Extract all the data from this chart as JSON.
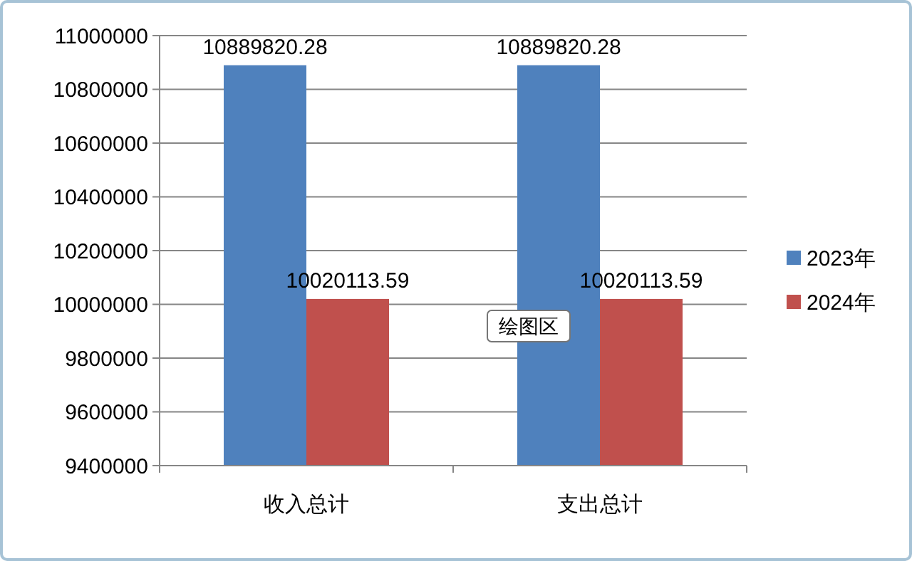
{
  "chart_data": {
    "type": "bar",
    "categories": [
      "收入总计",
      "支出总计"
    ],
    "series": [
      {
        "name": "2023年",
        "color": "#4f81bd",
        "values": [
          10889820.28,
          10889820.28
        ]
      },
      {
        "name": "2024年",
        "color": "#c0504d",
        "values": [
          10020113.59,
          10020113.59
        ]
      }
    ],
    "ylim": [
      9400000,
      11000000
    ],
    "yticks": [
      9400000,
      9600000,
      9800000,
      10000000,
      10200000,
      10400000,
      10600000,
      10800000,
      11000000
    ],
    "grid": "y",
    "legend": "right",
    "data_labels": true,
    "annotations": [
      "绘图区"
    ]
  }
}
